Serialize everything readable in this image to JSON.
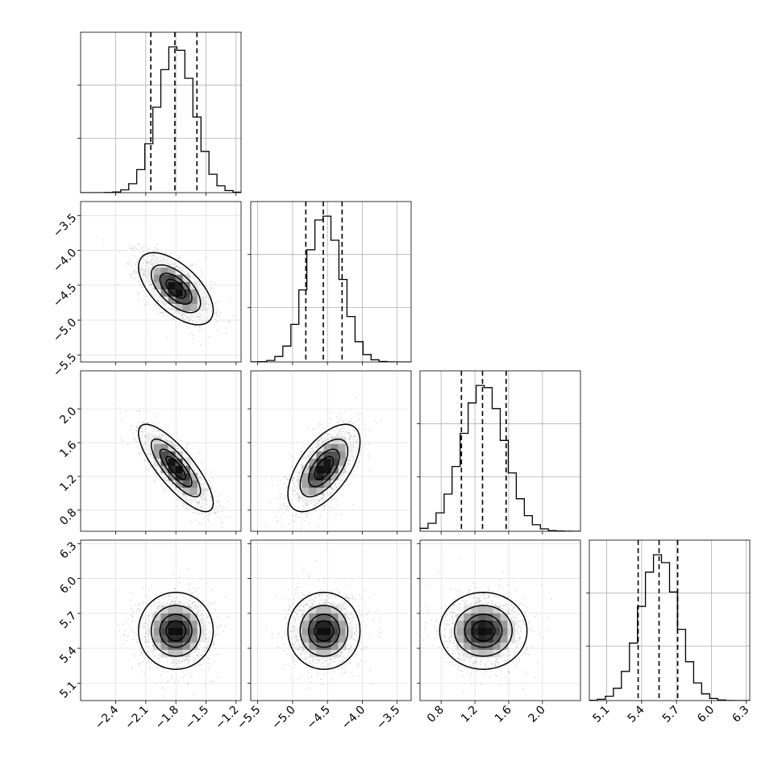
{
  "chart_data": {
    "type": "corner",
    "variables": [
      {
        "range": [
          -2.75,
          -1.15
        ],
        "ticks": [
          -2.4,
          -2.1,
          -1.8,
          -1.5,
          -1.2
        ],
        "tick_labels": [
          "−2.4",
          "−2.1",
          "−1.8",
          "−1.5",
          "−1.2"
        ],
        "mean": -1.8,
        "sigma": 0.18,
        "quantiles": [
          -2.05,
          -1.81,
          -1.59
        ]
      },
      {
        "range": [
          -5.6,
          -3.3
        ],
        "ticks": [
          -5.5,
          -5.0,
          -4.5,
          -4.0,
          -3.5
        ],
        "tick_labels": [
          "−5.5",
          "−5.0",
          "−4.5",
          "−4.0",
          "−3.5"
        ],
        "mean": -4.55,
        "sigma": 0.25,
        "quantiles": [
          -4.81,
          -4.56,
          -4.29
        ]
      },
      {
        "range": [
          0.55,
          2.45
        ],
        "ticks": [
          0.8,
          1.2,
          1.6,
          2.0
        ],
        "tick_labels": [
          "0.8",
          "1.2",
          "1.6",
          "2.0"
        ],
        "mean": 1.3,
        "sigma": 0.25,
        "quantiles": [
          1.04,
          1.29,
          1.57
        ]
      },
      {
        "range": [
          4.95,
          6.33
        ],
        "ticks": [
          5.1,
          5.4,
          5.7,
          6.0,
          6.3
        ],
        "tick_labels": [
          "5.1",
          "5.4",
          "5.7",
          "6.0",
          "6.3"
        ],
        "mean": 5.55,
        "sigma": 0.16,
        "quantiles": [
          5.37,
          5.55,
          5.71
        ]
      }
    ],
    "correlations": [
      [
        1,
        -0.6,
        -0.8,
        0.0
      ],
      [
        -0.6,
        1,
        0.6,
        0.0
      ],
      [
        -0.8,
        0.6,
        1,
        0.0
      ],
      [
        0.0,
        0.0,
        0.0,
        1
      ]
    ],
    "contour_levels_sigma": [
      0.5,
      1.0,
      1.5,
      2.0
    ],
    "grid": true,
    "colors": {
      "line": "#000000",
      "grid": "#b0b0b0",
      "points": "#9e9e9e"
    }
  }
}
